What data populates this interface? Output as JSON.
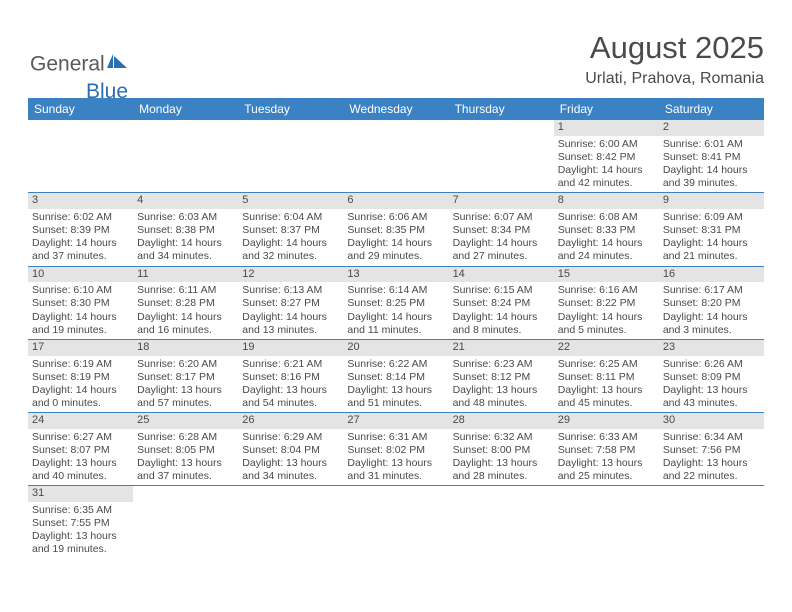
{
  "logo": {
    "text1": "General",
    "text2": "Blue"
  },
  "title": "August 2025",
  "location": "Urlati, Prahova, Romania",
  "colors": {
    "header_bg": "#3b82c4",
    "header_fg": "#ffffff",
    "daynum_bg": "#e4e4e4",
    "row_border": "#3b82c4",
    "text": "#4a4a4a",
    "logo_blue": "#2a6fb0"
  },
  "weekdays": [
    "Sunday",
    "Monday",
    "Tuesday",
    "Wednesday",
    "Thursday",
    "Friday",
    "Saturday"
  ],
  "weeks": [
    [
      {
        "n": "",
        "lines": [
          "",
          "",
          "",
          ""
        ]
      },
      {
        "n": "",
        "lines": [
          "",
          "",
          "",
          ""
        ]
      },
      {
        "n": "",
        "lines": [
          "",
          "",
          "",
          ""
        ]
      },
      {
        "n": "",
        "lines": [
          "",
          "",
          "",
          ""
        ]
      },
      {
        "n": "",
        "lines": [
          "",
          "",
          "",
          ""
        ]
      },
      {
        "n": "1",
        "lines": [
          "Sunrise: 6:00 AM",
          "Sunset: 8:42 PM",
          "Daylight: 14 hours",
          "and 42 minutes."
        ]
      },
      {
        "n": "2",
        "lines": [
          "Sunrise: 6:01 AM",
          "Sunset: 8:41 PM",
          "Daylight: 14 hours",
          "and 39 minutes."
        ]
      }
    ],
    [
      {
        "n": "3",
        "lines": [
          "Sunrise: 6:02 AM",
          "Sunset: 8:39 PM",
          "Daylight: 14 hours",
          "and 37 minutes."
        ]
      },
      {
        "n": "4",
        "lines": [
          "Sunrise: 6:03 AM",
          "Sunset: 8:38 PM",
          "Daylight: 14 hours",
          "and 34 minutes."
        ]
      },
      {
        "n": "5",
        "lines": [
          "Sunrise: 6:04 AM",
          "Sunset: 8:37 PM",
          "Daylight: 14 hours",
          "and 32 minutes."
        ]
      },
      {
        "n": "6",
        "lines": [
          "Sunrise: 6:06 AM",
          "Sunset: 8:35 PM",
          "Daylight: 14 hours",
          "and 29 minutes."
        ]
      },
      {
        "n": "7",
        "lines": [
          "Sunrise: 6:07 AM",
          "Sunset: 8:34 PM",
          "Daylight: 14 hours",
          "and 27 minutes."
        ]
      },
      {
        "n": "8",
        "lines": [
          "Sunrise: 6:08 AM",
          "Sunset: 8:33 PM",
          "Daylight: 14 hours",
          "and 24 minutes."
        ]
      },
      {
        "n": "9",
        "lines": [
          "Sunrise: 6:09 AM",
          "Sunset: 8:31 PM",
          "Daylight: 14 hours",
          "and 21 minutes."
        ]
      }
    ],
    [
      {
        "n": "10",
        "lines": [
          "Sunrise: 6:10 AM",
          "Sunset: 8:30 PM",
          "Daylight: 14 hours",
          "and 19 minutes."
        ]
      },
      {
        "n": "11",
        "lines": [
          "Sunrise: 6:11 AM",
          "Sunset: 8:28 PM",
          "Daylight: 14 hours",
          "and 16 minutes."
        ]
      },
      {
        "n": "12",
        "lines": [
          "Sunrise: 6:13 AM",
          "Sunset: 8:27 PM",
          "Daylight: 14 hours",
          "and 13 minutes."
        ]
      },
      {
        "n": "13",
        "lines": [
          "Sunrise: 6:14 AM",
          "Sunset: 8:25 PM",
          "Daylight: 14 hours",
          "and 11 minutes."
        ]
      },
      {
        "n": "14",
        "lines": [
          "Sunrise: 6:15 AM",
          "Sunset: 8:24 PM",
          "Daylight: 14 hours",
          "and 8 minutes."
        ]
      },
      {
        "n": "15",
        "lines": [
          "Sunrise: 6:16 AM",
          "Sunset: 8:22 PM",
          "Daylight: 14 hours",
          "and 5 minutes."
        ]
      },
      {
        "n": "16",
        "lines": [
          "Sunrise: 6:17 AM",
          "Sunset: 8:20 PM",
          "Daylight: 14 hours",
          "and 3 minutes."
        ]
      }
    ],
    [
      {
        "n": "17",
        "lines": [
          "Sunrise: 6:19 AM",
          "Sunset: 8:19 PM",
          "Daylight: 14 hours",
          "and 0 minutes."
        ]
      },
      {
        "n": "18",
        "lines": [
          "Sunrise: 6:20 AM",
          "Sunset: 8:17 PM",
          "Daylight: 13 hours",
          "and 57 minutes."
        ]
      },
      {
        "n": "19",
        "lines": [
          "Sunrise: 6:21 AM",
          "Sunset: 8:16 PM",
          "Daylight: 13 hours",
          "and 54 minutes."
        ]
      },
      {
        "n": "20",
        "lines": [
          "Sunrise: 6:22 AM",
          "Sunset: 8:14 PM",
          "Daylight: 13 hours",
          "and 51 minutes."
        ]
      },
      {
        "n": "21",
        "lines": [
          "Sunrise: 6:23 AM",
          "Sunset: 8:12 PM",
          "Daylight: 13 hours",
          "and 48 minutes."
        ]
      },
      {
        "n": "22",
        "lines": [
          "Sunrise: 6:25 AM",
          "Sunset: 8:11 PM",
          "Daylight: 13 hours",
          "and 45 minutes."
        ]
      },
      {
        "n": "23",
        "lines": [
          "Sunrise: 6:26 AM",
          "Sunset: 8:09 PM",
          "Daylight: 13 hours",
          "and 43 minutes."
        ]
      }
    ],
    [
      {
        "n": "24",
        "lines": [
          "Sunrise: 6:27 AM",
          "Sunset: 8:07 PM",
          "Daylight: 13 hours",
          "and 40 minutes."
        ]
      },
      {
        "n": "25",
        "lines": [
          "Sunrise: 6:28 AM",
          "Sunset: 8:05 PM",
          "Daylight: 13 hours",
          "and 37 minutes."
        ]
      },
      {
        "n": "26",
        "lines": [
          "Sunrise: 6:29 AM",
          "Sunset: 8:04 PM",
          "Daylight: 13 hours",
          "and 34 minutes."
        ]
      },
      {
        "n": "27",
        "lines": [
          "Sunrise: 6:31 AM",
          "Sunset: 8:02 PM",
          "Daylight: 13 hours",
          "and 31 minutes."
        ]
      },
      {
        "n": "28",
        "lines": [
          "Sunrise: 6:32 AM",
          "Sunset: 8:00 PM",
          "Daylight: 13 hours",
          "and 28 minutes."
        ]
      },
      {
        "n": "29",
        "lines": [
          "Sunrise: 6:33 AM",
          "Sunset: 7:58 PM",
          "Daylight: 13 hours",
          "and 25 minutes."
        ]
      },
      {
        "n": "30",
        "lines": [
          "Sunrise: 6:34 AM",
          "Sunset: 7:56 PM",
          "Daylight: 13 hours",
          "and 22 minutes."
        ]
      }
    ],
    [
      {
        "n": "31",
        "lines": [
          "Sunrise: 6:35 AM",
          "Sunset: 7:55 PM",
          "Daylight: 13 hours",
          "and 19 minutes."
        ]
      },
      {
        "n": "",
        "lines": [
          "",
          "",
          "",
          ""
        ]
      },
      {
        "n": "",
        "lines": [
          "",
          "",
          "",
          ""
        ]
      },
      {
        "n": "",
        "lines": [
          "",
          "",
          "",
          ""
        ]
      },
      {
        "n": "",
        "lines": [
          "",
          "",
          "",
          ""
        ]
      },
      {
        "n": "",
        "lines": [
          "",
          "",
          "",
          ""
        ]
      },
      {
        "n": "",
        "lines": [
          "",
          "",
          "",
          ""
        ]
      }
    ]
  ]
}
